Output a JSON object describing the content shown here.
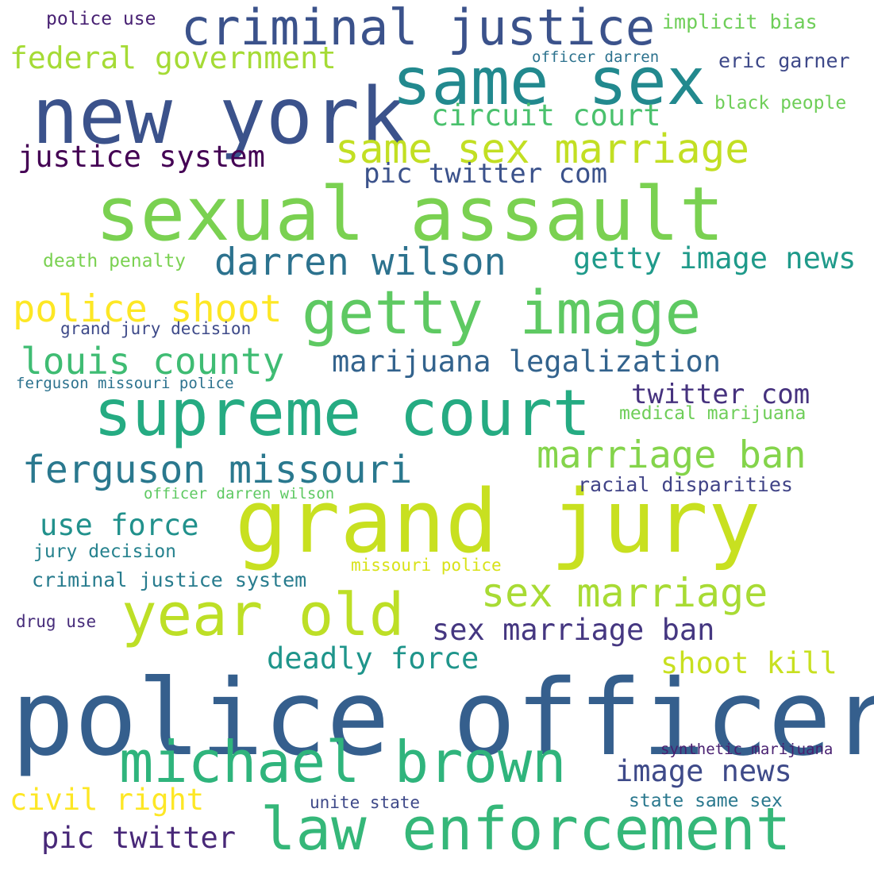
{
  "words": [
    {
      "text": "police officer",
      "color": "#355f8d"
    },
    {
      "text": "grand jury",
      "color": "#c8e020"
    },
    {
      "text": "sexual assault",
      "color": "#7ad151"
    },
    {
      "text": "new york",
      "color": "#3b528b"
    },
    {
      "text": "supreme court",
      "color": "#25ab82"
    },
    {
      "text": "same sex",
      "color": "#22898e"
    },
    {
      "text": "getty image",
      "color": "#5ec962"
    },
    {
      "text": "law enforcement",
      "color": "#35b779"
    },
    {
      "text": "michael brown",
      "color": "#2fb47c"
    },
    {
      "text": "year old",
      "color": "#bddf26"
    },
    {
      "text": "criminal justice",
      "color": "#3b528b"
    },
    {
      "text": "same sex marriage",
      "color": "#c2df23"
    },
    {
      "text": "sex marriage",
      "color": "#a8db34"
    },
    {
      "text": "ferguson missouri",
      "color": "#2a788e"
    },
    {
      "text": "darren wilson",
      "color": "#2c728e"
    },
    {
      "text": "marriage ban",
      "color": "#84d44b"
    },
    {
      "text": "police shoot",
      "color": "#fde725"
    },
    {
      "text": "louis county",
      "color": "#3fbc73"
    },
    {
      "text": "federal government",
      "color": "#a5db36"
    },
    {
      "text": "getty image news",
      "color": "#1f9a8a"
    },
    {
      "text": "marijuana legalization",
      "color": "#33638d"
    },
    {
      "text": "circuit court",
      "color": "#4ac16d"
    },
    {
      "text": "justice system",
      "color": "#440154"
    },
    {
      "text": "sex marriage ban",
      "color": "#453781"
    },
    {
      "text": "image news",
      "color": "#3e4a89"
    },
    {
      "text": "pic twitter com",
      "color": "#3b528b"
    },
    {
      "text": "twitter com",
      "color": "#46327e"
    },
    {
      "text": "deadly force",
      "color": "#1f958b"
    },
    {
      "text": "shoot kill",
      "color": "#c8e020"
    },
    {
      "text": "civil right",
      "color": "#fde725"
    },
    {
      "text": "pic twitter",
      "color": "#482878"
    },
    {
      "text": "use force",
      "color": "#21918c"
    },
    {
      "text": "eric garner",
      "color": "#3e4989"
    },
    {
      "text": "criminal justice system",
      "color": "#287c8e"
    },
    {
      "text": "racial disparities",
      "color": "#414487"
    },
    {
      "text": "implicit bias",
      "color": "#6ece58"
    },
    {
      "text": "black people",
      "color": "#6ece58"
    },
    {
      "text": "medical marijuana",
      "color": "#6ece58"
    },
    {
      "text": "police use",
      "color": "#482173"
    },
    {
      "text": "death penalty",
      "color": "#7ad151"
    },
    {
      "text": "grand jury decision",
      "color": "#3e4a89"
    },
    {
      "text": "jury decision",
      "color": "#26828e"
    },
    {
      "text": "missouri police",
      "color": "#d8e219"
    },
    {
      "text": "state same sex",
      "color": "#2a788e"
    },
    {
      "text": "unite state",
      "color": "#3e4989"
    },
    {
      "text": "synthetic marijuana",
      "color": "#481f70"
    },
    {
      "text": "drug use",
      "color": "#472d7b"
    },
    {
      "text": "officer darren",
      "color": "#2c728e"
    },
    {
      "text": "officer darren wilson",
      "color": "#5ec962"
    },
    {
      "text": "ferguson missouri police",
      "color": "#2c728e"
    }
  ]
}
